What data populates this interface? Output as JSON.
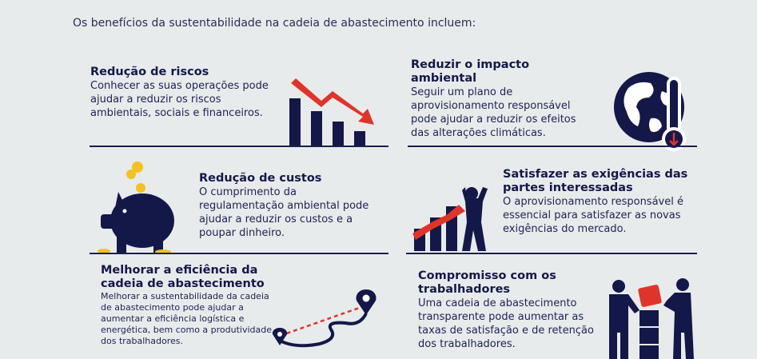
{
  "intro": "Os benefícios da sustentabilidade na cadeia de abastecimento incluem:",
  "benefits": [
    {
      "title": "Redução de riscos",
      "body": "Conhecer as suas operações pode ajudar a reduzir os riscos ambientais, sociais e financeiros."
    },
    {
      "title": "Reduzir o impacto ambiental",
      "body": "Seguir um plano de aprovisionamento responsável pode ajudar a reduzir os efeitos das alterações climáticas."
    },
    {
      "title": "Redução de custos",
      "body": "O cumprimento da regulamentação ambiental pode ajudar a reduzir os custos e a poupar dinheiro."
    },
    {
      "title": "Satisfazer as exigências das partes interessadas",
      "body": "O aprovisionamento responsável é essencial para satisfazer as novas exigências do mercado."
    },
    {
      "title": "Melhorar a eficiência da cadeia de abastecimento",
      "body": "Melhorar a sustentabilidade da cadeia de abastecimento pode ajudar a aumentar a eficiência logística e energética, bem como a produtividade dos trabalhadores."
    },
    {
      "title": "Compromisso com os trabalhadores",
      "body": "Uma cadeia de abastecimento transparente pode aumentar as taxas de satisfação e de retenção dos trabalhadores."
    }
  ],
  "colors": {
    "navy": "#141848",
    "red": "#e0342b",
    "gold": "#f4c21c",
    "background": "#e7ebec"
  },
  "icons": [
    "declining-bar-chart-icon",
    "globe-thermometer-icon",
    "piggy-bank-icon",
    "rising-chart-person-icon",
    "route-map-icon",
    "teamwork-blocks-icon"
  ]
}
